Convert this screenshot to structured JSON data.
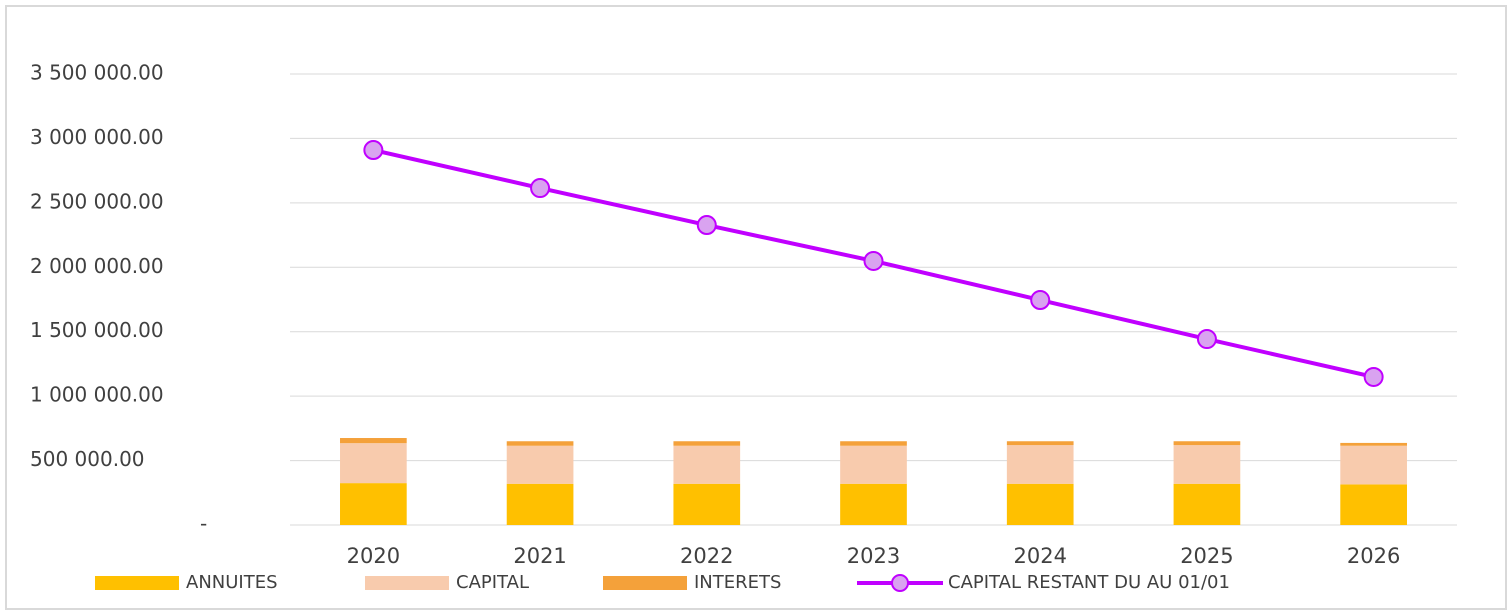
{
  "chart_data": {
    "type": "bar",
    "stacked": true,
    "categories": [
      "2020",
      "2021",
      "2022",
      "2023",
      "2024",
      "2025",
      "2026"
    ],
    "series": [
      {
        "name": "ANNUITES",
        "color": "#ffc000",
        "values": [
          325000,
          320000,
          320000,
          320000,
          320000,
          320000,
          315000
        ]
      },
      {
        "name": "CAPITAL",
        "color": "#f8cbad",
        "values": [
          310000,
          295000,
          295000,
          295000,
          300000,
          300000,
          300000
        ]
      },
      {
        "name": "INTERETS",
        "color": "#f4a13a",
        "values": [
          40000,
          35000,
          35000,
          35000,
          30000,
          30000,
          22000
        ]
      },
      {
        "name": "CAPITAL RESTANT DU AU 01/01",
        "type": "line",
        "color": "#c000ff",
        "marker_color": "#d9a3f0",
        "values": [
          2910000,
          2615000,
          2328000,
          2049000,
          1746000,
          1443000,
          1149000
        ]
      }
    ],
    "ylim": [
      0,
      3500000
    ],
    "yticks": [
      {
        "value": 0,
        "label": "-"
      },
      {
        "value": 500000,
        "label": "500 000.00"
      },
      {
        "value": 1000000,
        "label": "1 000 000.00"
      },
      {
        "value": 1500000,
        "label": "1 500 000.00"
      },
      {
        "value": 2000000,
        "label": "2 000 000.00"
      },
      {
        "value": 2500000,
        "label": "2 500 000.00"
      },
      {
        "value": 3000000,
        "label": "3 000 000.00"
      },
      {
        "value": 3500000,
        "label": "3 500 000.00"
      }
    ],
    "grid": true,
    "legend": "bottom"
  }
}
